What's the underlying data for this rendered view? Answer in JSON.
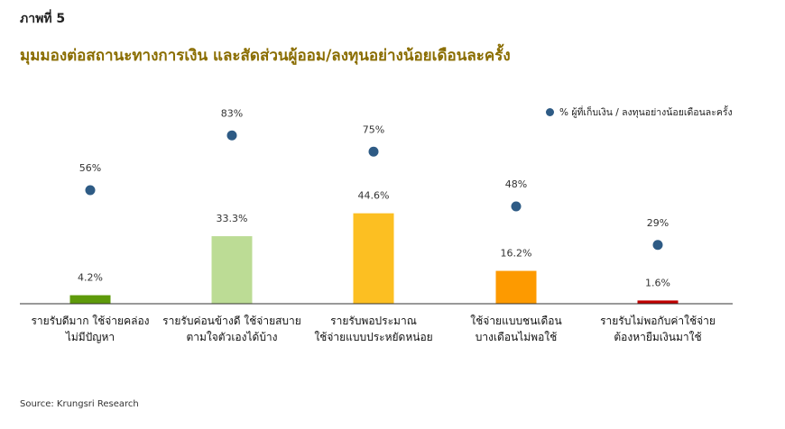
{
  "figure_label": "ภาพที่ 5",
  "title": "มุมมองต่อสถานะทางการเงิน และสัดส่วนผู้ออม/ลงทุนอย่างน้อยเดือนละครั้ง",
  "source": "Source: Krungsri Research",
  "chart_data": {
    "type": "bar",
    "title": "มุมมองต่อสถานะทางการเงิน และสัดส่วนผู้ออม/ลงทุนอย่างน้อยเดือนละครั้ง",
    "xlabel": "",
    "ylabel": "",
    "ylim": [
      0,
      100
    ],
    "grid": false,
    "legend_position": "top-right",
    "categories": [
      [
        "รายรับดีมาก ใช้จ่ายคล่อง",
        "ไม่มีปัญหา"
      ],
      [
        "รายรับค่อนข้างดี ใช้จ่ายสบาย",
        "ตามใจตัวเองได้บ้าง"
      ],
      [
        "รายรับพอประมาณ",
        "ใช้จ่ายแบบประหยัดหน่อย"
      ],
      [
        "ใช้จ่ายแบบชนเดือน",
        "บางเดือนไม่พอใช้"
      ],
      [
        "รายรับไม่พอกับค่าใช้จ่าย",
        "ต้องหายืมเงินมาใช้"
      ]
    ],
    "series": [
      {
        "type": "bar",
        "values": [
          4.2,
          33.3,
          44.6,
          16.2,
          1.6
        ],
        "labels": [
          "4.2%",
          "33.3%",
          "44.6%",
          "16.2%",
          "1.6%"
        ],
        "colors": [
          "#5e9a0a",
          "#bcdc95",
          "#fcbf22",
          "#fd9a00",
          "#c00000"
        ]
      },
      {
        "type": "scatter",
        "name": "% ผู้ที่เก็บเงิน / ลงทุนอย่างน้อยเดือนละครั้ง",
        "values": [
          56,
          83,
          75,
          48,
          29
        ],
        "labels": [
          "56%",
          "83%",
          "75%",
          "48%",
          "29%"
        ],
        "color": "#2e5b85"
      }
    ]
  }
}
